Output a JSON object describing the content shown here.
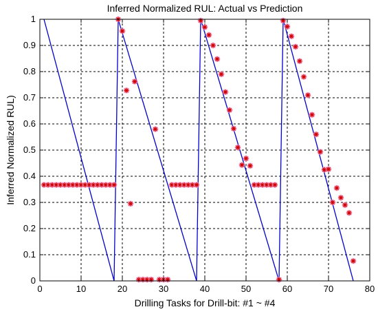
{
  "chart_data": {
    "type": "line",
    "title": "Inferred Normalized RUL: Actual vs Prediction",
    "xlabel": "Drilling Tasks for Drill-bit: #1 ~ #4",
    "ylabel": "Inferred Normalized RUL)",
    "xlim": [
      0,
      80
    ],
    "ylim": [
      0,
      1
    ],
    "xticks": [
      0,
      10,
      20,
      30,
      40,
      50,
      60,
      70,
      80
    ],
    "yticks": [
      0,
      0.1,
      0.2,
      0.3,
      0.4,
      0.5,
      0.6,
      0.7,
      0.8,
      0.9,
      1
    ],
    "grid": true,
    "colors": {
      "actual": "#0000cc",
      "predicted": "#cc0000",
      "predicted_halo": "#ff99cc"
    },
    "series": [
      {
        "kind": "actual-line",
        "segments": [
          [
            [
              1,
              1
            ],
            [
              18,
              0
            ]
          ],
          [
            [
              18,
              0
            ],
            [
              19,
              1
            ]
          ],
          [
            [
              19,
              1
            ],
            [
              38,
              0
            ]
          ],
          [
            [
              38,
              0
            ],
            [
              39,
              1
            ]
          ],
          [
            [
              39,
              1
            ],
            [
              58,
              0
            ]
          ],
          [
            [
              58,
              0
            ],
            [
              59,
              1
            ]
          ],
          [
            [
              59,
              1
            ],
            [
              76,
              0
            ]
          ]
        ]
      },
      {
        "kind": "predicted-markers",
        "x": [
          1,
          2,
          3,
          4,
          5,
          6,
          7,
          8,
          9,
          10,
          11,
          12,
          13,
          14,
          15,
          16,
          17,
          18,
          19,
          20,
          21,
          22,
          23,
          24,
          25,
          26,
          27,
          28,
          29,
          30,
          31,
          32,
          33,
          34,
          35,
          36,
          37,
          38,
          39,
          40,
          41,
          42,
          43,
          44,
          45,
          46,
          47,
          48,
          49,
          50,
          51,
          52,
          53,
          54,
          55,
          56,
          57,
          58,
          59,
          60,
          61,
          62,
          63,
          64,
          65,
          66,
          67,
          68,
          69,
          70,
          71,
          72,
          73,
          74,
          75,
          76
        ],
        "y": [
          0.367,
          0.367,
          0.367,
          0.367,
          0.367,
          0.367,
          0.367,
          0.367,
          0.367,
          0.367,
          0.367,
          0.367,
          0.367,
          0.367,
          0.367,
          0.367,
          0.367,
          0.367,
          1.0,
          0.955,
          0.728,
          0.295,
          0.762,
          0.005,
          0.005,
          0.005,
          0.005,
          0.58,
          0.005,
          0.005,
          0.005,
          0.367,
          0.367,
          0.367,
          0.367,
          0.367,
          0.367,
          0.367,
          0.995,
          0.97,
          0.94,
          0.9,
          0.848,
          0.79,
          0.722,
          0.653,
          0.582,
          0.51,
          0.443,
          0.468,
          0.44,
          0.367,
          0.367,
          0.367,
          0.367,
          0.367,
          0.367,
          0.005,
          0.995,
          0.972,
          0.935,
          0.895,
          0.84,
          0.78,
          0.71,
          0.635,
          0.56,
          0.493,
          0.425,
          0.427,
          0.3,
          0.355,
          0.318,
          0.29,
          0.26,
          0.076
        ]
      }
    ]
  }
}
